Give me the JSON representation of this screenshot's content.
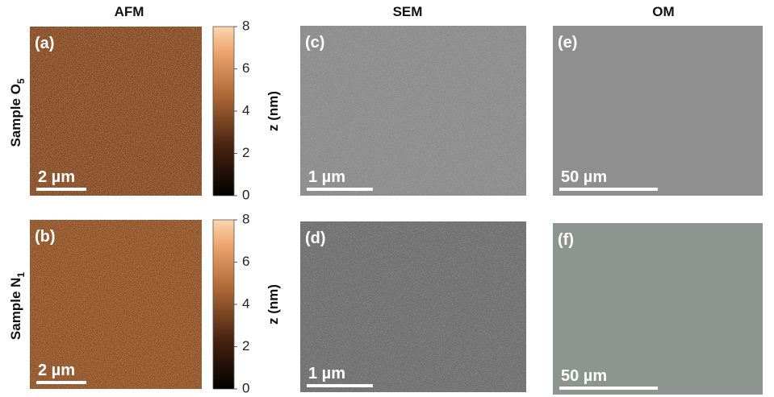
{
  "columns": [
    "AFM",
    "SEM",
    "OM"
  ],
  "rows": [
    {
      "label": "Sample O",
      "subscript": "5"
    },
    {
      "label": "Sample N",
      "subscript": "1"
    }
  ],
  "panels": [
    {
      "tag": "(a)",
      "scale": "2 µm"
    },
    {
      "tag": "(b)",
      "scale": "2 µm"
    },
    {
      "tag": "(c)",
      "scale": "1 µm"
    },
    {
      "tag": "(d)",
      "scale": "1 µm"
    },
    {
      "tag": "(e)",
      "scale": "50 µm"
    },
    {
      "tag": "(f)",
      "scale": "50 µm"
    }
  ],
  "colorbar": {
    "label": "z (nm)",
    "lim": [
      0,
      8
    ],
    "ticks": [
      0,
      2,
      4,
      6,
      8
    ]
  }
}
